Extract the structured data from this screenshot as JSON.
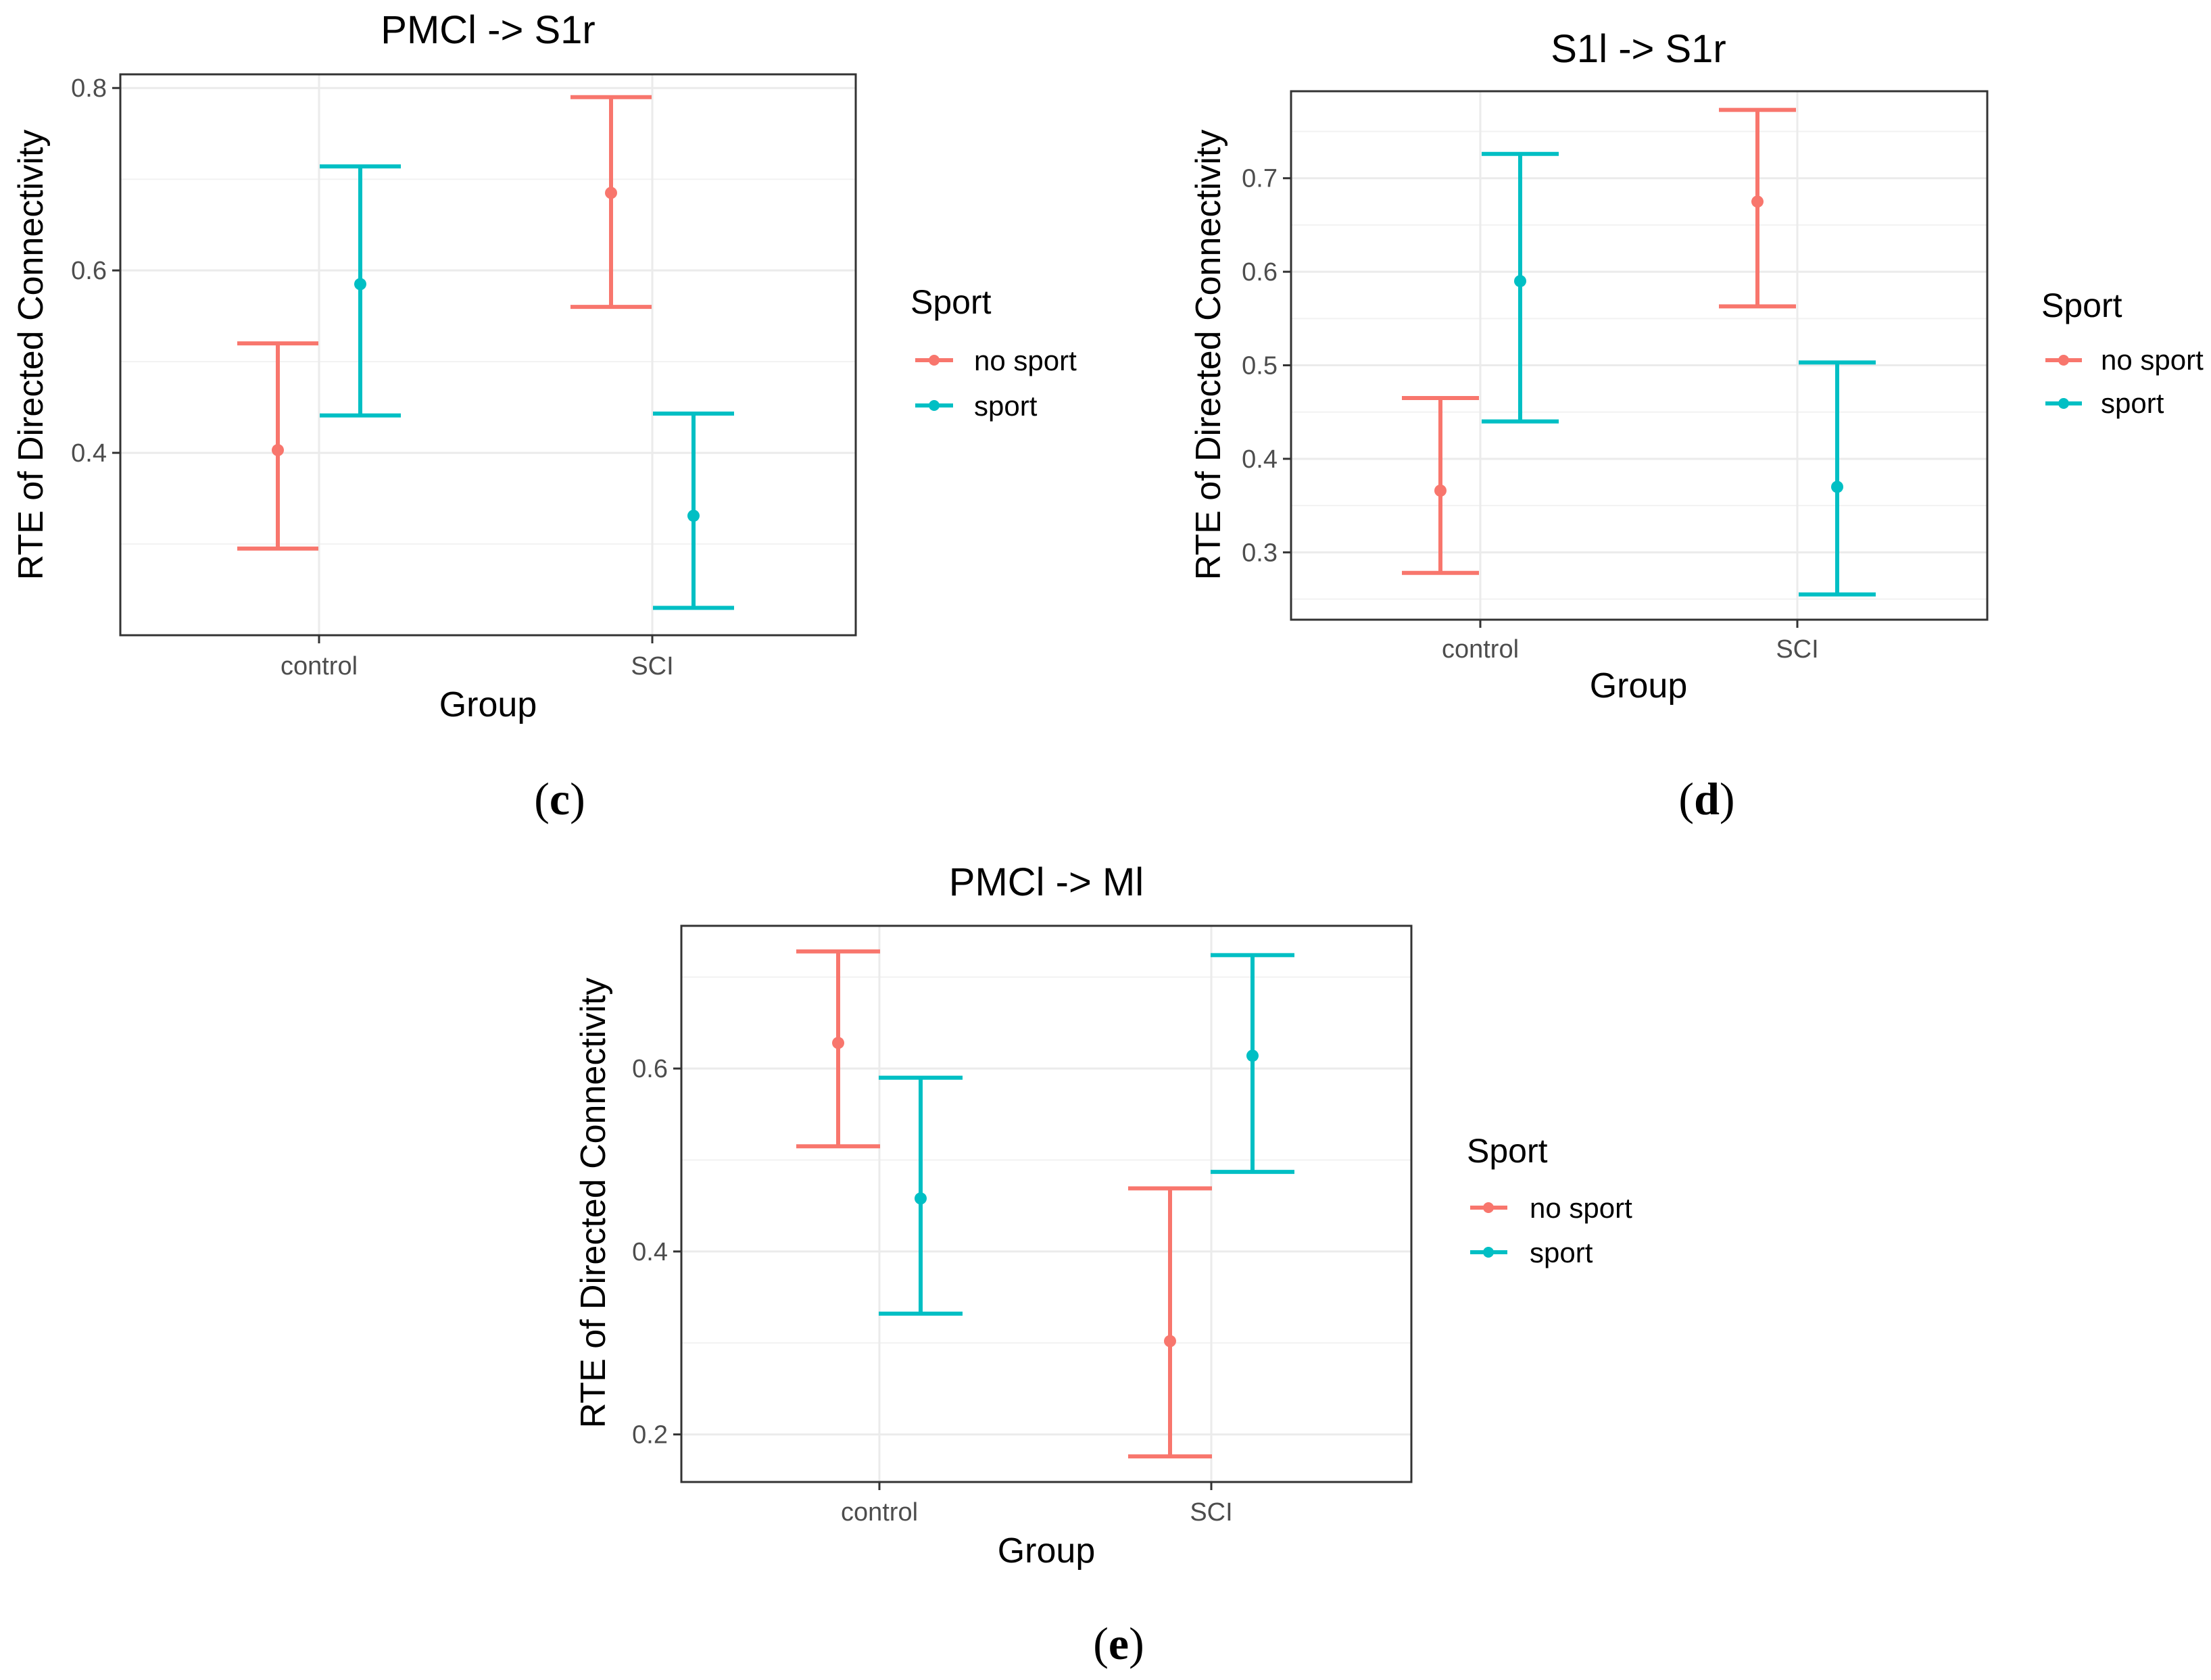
{
  "chart_data": [
    {
      "type": "errorbar",
      "panel": "c",
      "caption": {
        "open": "(",
        "letter": "c",
        "close": ")"
      },
      "title": "PMCl -> S1r",
      "xlabel": "Group",
      "ylabel": "RTE of Directed Connectivity",
      "categories": [
        "control",
        "SCI"
      ],
      "ylim": [
        0.2,
        0.815
      ],
      "yticks": [
        0.4,
        0.6,
        0.8
      ],
      "ytick_labels": [
        "0.4",
        "0.6",
        "0.8"
      ],
      "legend": {
        "title": "Sport",
        "entries": [
          "no sport",
          "sport"
        ]
      },
      "series": [
        {
          "name": "no sport",
          "color": "#F8766D",
          "points": [
            {
              "x": "control",
              "y": 0.403,
              "lower": 0.295,
              "upper": 0.52
            },
            {
              "x": "SCI",
              "y": 0.685,
              "lower": 0.56,
              "upper": 0.79
            }
          ]
        },
        {
          "name": "sport",
          "color": "#00BFC4",
          "points": [
            {
              "x": "control",
              "y": 0.585,
              "lower": 0.441,
              "upper": 0.714
            },
            {
              "x": "SCI",
              "y": 0.331,
              "lower": 0.23,
              "upper": 0.443
            }
          ]
        }
      ]
    },
    {
      "type": "errorbar",
      "panel": "d",
      "caption": {
        "open": "(",
        "letter": "d",
        "close": ")"
      },
      "title": "S1l -> S1r",
      "xlabel": "Group",
      "ylabel": "RTE of Directed Connectivity",
      "categories": [
        "control",
        "SCI"
      ],
      "ylim": [
        0.228,
        0.793
      ],
      "yticks": [
        0.3,
        0.4,
        0.5,
        0.6,
        0.7
      ],
      "ytick_labels": [
        "0.3",
        "0.4",
        "0.5",
        "0.6",
        "0.7"
      ],
      "legend": {
        "title": "Sport",
        "entries": [
          "no sport",
          "sport"
        ]
      },
      "series": [
        {
          "name": "no sport",
          "color": "#F8766D",
          "points": [
            {
              "x": "control",
              "y": 0.366,
              "lower": 0.278,
              "upper": 0.465
            },
            {
              "x": "SCI",
              "y": 0.675,
              "lower": 0.563,
              "upper": 0.773
            }
          ]
        },
        {
          "name": "sport",
          "color": "#00BFC4",
          "points": [
            {
              "x": "control",
              "y": 0.59,
              "lower": 0.44,
              "upper": 0.726
            },
            {
              "x": "SCI",
              "y": 0.37,
              "lower": 0.255,
              "upper": 0.503
            }
          ]
        }
      ]
    },
    {
      "type": "errorbar",
      "panel": "e",
      "caption": {
        "open": "(",
        "letter": "e",
        "close": ")"
      },
      "title": "PMCl -> Ml",
      "xlabel": "Group",
      "ylabel": "RTE of Directed Connectivity",
      "categories": [
        "control",
        "SCI"
      ],
      "ylim": [
        0.148,
        0.756
      ],
      "yticks": [
        0.2,
        0.4,
        0.6
      ],
      "ytick_labels": [
        "0.2",
        "0.4",
        "0.6"
      ],
      "legend": {
        "title": "Sport",
        "entries": [
          "no sport",
          "sport"
        ]
      },
      "series": [
        {
          "name": "no sport",
          "color": "#F8766D",
          "points": [
            {
              "x": "control",
              "y": 0.628,
              "lower": 0.515,
              "upper": 0.728
            },
            {
              "x": "SCI",
              "y": 0.302,
              "lower": 0.176,
              "upper": 0.469
            }
          ]
        },
        {
          "name": "sport",
          "color": "#00BFC4",
          "points": [
            {
              "x": "control",
              "y": 0.458,
              "lower": 0.332,
              "upper": 0.59
            },
            {
              "x": "SCI",
              "y": 0.614,
              "lower": 0.487,
              "upper": 0.724
            }
          ]
        }
      ]
    }
  ]
}
